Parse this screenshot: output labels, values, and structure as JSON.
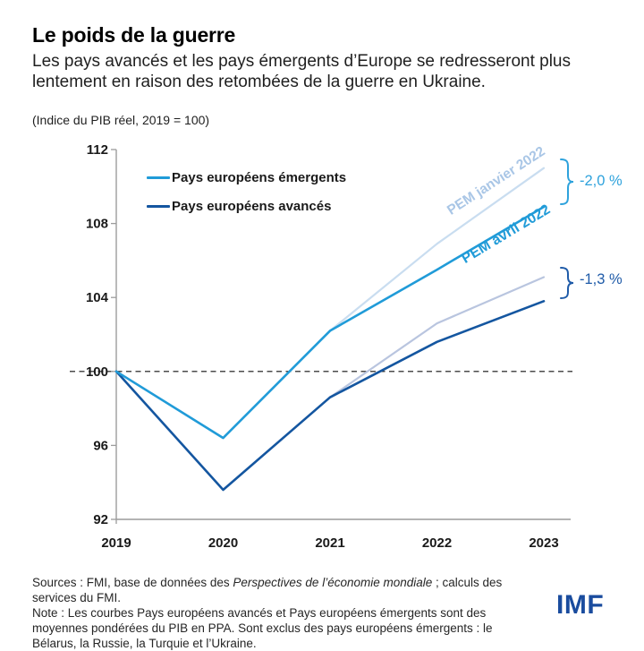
{
  "header": {
    "title": "Le poids de la guerre",
    "subtitle": "Les pays avancés et les pays émergents d’Europe se redresseront plus lentement en raison des retombées de la guerre en Ukraine.",
    "unit_note": "(Indice du PIB réel, 2019 = 100)"
  },
  "legend": {
    "items": [
      {
        "label": "Pays européens émergents",
        "color": "#209bd8"
      },
      {
        "label": "Pays européens avancés",
        "color": "#1456a0"
      }
    ]
  },
  "annotations": {
    "pem_janvier_label": "PEM janvier 2022",
    "pem_avril_label": "PEM avril 2022",
    "gap_emergents": "-2,0 %",
    "gap_avances": "-1,3 %"
  },
  "chart_data": {
    "type": "line",
    "categories": [
      "2019",
      "2020",
      "2021",
      "2022",
      "2023"
    ],
    "series": [
      {
        "name": "Pays européens émergents — PEM janvier 2022",
        "color": "#c9ddf0",
        "width": 2.2,
        "values": [
          100,
          96.4,
          102.2,
          106.9,
          111.0
        ]
      },
      {
        "name": "Pays européens avancés — PEM janvier 2022",
        "color": "#b9c5df",
        "width": 2.2,
        "values": [
          100,
          93.6,
          98.6,
          102.6,
          105.1
        ]
      },
      {
        "name": "Pays européens avancés — PEM avril 2022",
        "color": "#1456a0",
        "width": 2.6,
        "values": [
          100,
          93.6,
          98.6,
          101.6,
          103.8
        ]
      },
      {
        "name": "Pays européens émergents — PEM avril 2022",
        "color": "#209bd8",
        "width": 2.6,
        "values": [
          100,
          96.4,
          102.2,
          105.5,
          108.9
        ]
      }
    ],
    "ylim": [
      92,
      112
    ],
    "yticks": [
      92,
      96,
      100,
      104,
      108,
      112
    ],
    "baseline": 100,
    "grid": false,
    "legend_position": "top-left-inside",
    "title": "Le poids de la guerre",
    "ylabel": "Indice du PIB réel, 2019 = 100"
  },
  "footer": {
    "sources_prefix": "Sources : FMI, base de données des ",
    "sources_italic": "Perspectives de l’économie mondiale",
    "sources_suffix": " ; calculs des services du FMI.",
    "note": "Note : Les courbes Pays européens avancés et Pays européens émergents sont des moyennes pondérées du PIB en PPA. Sont exclus des pays européens émergents : le Bélarus, la Russie, la Turquie et l’Ukraine.",
    "logo": "IMF"
  }
}
